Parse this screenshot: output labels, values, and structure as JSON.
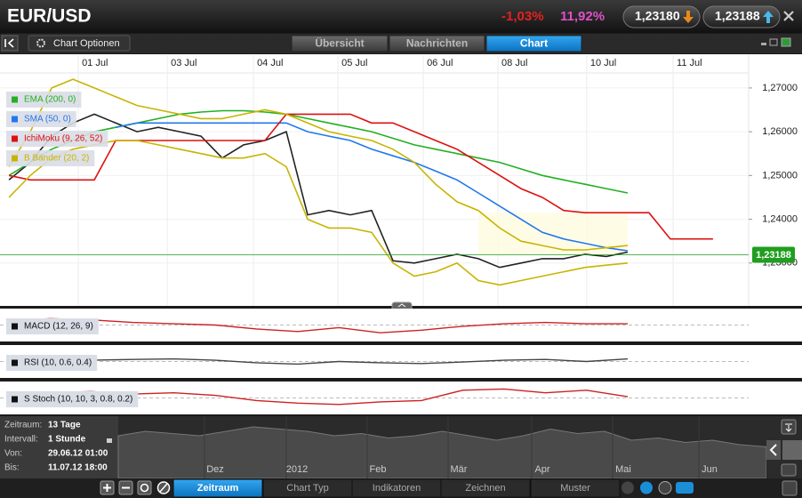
{
  "header": {
    "symbol": "EUR/USD",
    "change": "-1,03%",
    "change2": "11,92%",
    "bid": "1,23180",
    "ask": "1,23188"
  },
  "toolbar": {
    "options": "Chart Optionen",
    "tabs": [
      "Übersicht",
      "Nachrichten",
      "Chart"
    ]
  },
  "chart_data": {
    "type": "line",
    "x": [
      0,
      1,
      2,
      3,
      4,
      5,
      6,
      7,
      8,
      9,
      10,
      11,
      12,
      13,
      14,
      15,
      16,
      17,
      18,
      19,
      20,
      21,
      22,
      23,
      24,
      25,
      26,
      27,
      28,
      29,
      30,
      31,
      32,
      33
    ],
    "xlim": [
      -0.42,
      34.67
    ],
    "xticks": [
      {
        "value": 3.25,
        "label": "01 Jul"
      },
      {
        "value": 7.42,
        "label": "03 Jul"
      },
      {
        "value": 11.46,
        "label": "04 Jul"
      },
      {
        "value": 15.42,
        "label": "05 Jul"
      },
      {
        "value": 19.42,
        "label": "06 Jul"
      },
      {
        "value": 22.92,
        "label": "08 Jul"
      },
      {
        "value": 27.08,
        "label": "10 Jul"
      },
      {
        "value": 31.13,
        "label": "11 Jul"
      }
    ],
    "ylim": [
      1.22,
      1.2775
    ],
    "yticks": [
      {
        "value": 1.27,
        "label": "1,27000"
      },
      {
        "value": 1.26,
        "label": "1,26000"
      },
      {
        "value": 1.25,
        "label": "1,25000"
      },
      {
        "value": 1.24,
        "label": "1,24000"
      },
      {
        "value": 1.23,
        "label": "1,23000"
      }
    ],
    "grid": true,
    "last_price": {
      "value": 1.23188,
      "label": "1,23188",
      "color": "#1f9e1f"
    },
    "series": [
      {
        "color": "#222222",
        "values": [
          1.249,
          1.253,
          1.259,
          1.262,
          1.264,
          1.262,
          1.26,
          1.261,
          1.26,
          1.259,
          1.254,
          1.257,
          1.258,
          1.26,
          1.241,
          1.242,
          1.241,
          1.242,
          1.2305,
          1.23,
          1.231,
          1.232,
          1.231,
          1.229,
          1.23,
          1.231,
          1.231,
          1.232,
          1.2315,
          1.2325,
          null,
          null,
          null,
          null
        ]
      },
      {
        "name": "EMA (200, 0)",
        "color": "#22b022",
        "values": [
          1.25,
          1.253,
          1.256,
          1.258,
          1.26,
          1.261,
          1.262,
          1.263,
          1.264,
          1.2645,
          1.2648,
          1.2648,
          1.2645,
          1.264,
          1.263,
          1.262,
          1.261,
          1.26,
          1.2585,
          1.257,
          1.256,
          1.255,
          1.254,
          1.253,
          1.2515,
          1.25,
          1.249,
          1.248,
          1.247,
          1.246,
          null,
          null,
          null,
          null
        ]
      },
      {
        "name": "SMA (50, 0)",
        "color": "#2277ee",
        "values": [
          null,
          null,
          null,
          null,
          null,
          1.261,
          1.262,
          1.262,
          1.262,
          1.262,
          1.262,
          1.262,
          1.262,
          1.262,
          1.26,
          1.259,
          1.258,
          1.256,
          1.2545,
          1.253,
          1.251,
          1.249,
          1.246,
          1.243,
          1.24,
          1.237,
          1.2355,
          1.2345,
          1.2335,
          1.2328,
          null,
          null,
          null,
          null
        ]
      },
      {
        "name": "IchiMoku (9, 26, 52)",
        "color": "#dd1111",
        "values": [
          1.25,
          1.249,
          1.249,
          1.249,
          1.249,
          1.258,
          1.258,
          1.258,
          1.258,
          1.258,
          1.258,
          1.258,
          1.258,
          1.264,
          1.264,
          1.264,
          1.264,
          1.262,
          1.262,
          1.26,
          1.258,
          1.256,
          1.253,
          1.25,
          1.247,
          1.245,
          1.242,
          1.2415,
          1.2415,
          1.2415,
          1.2415,
          1.2355,
          1.2355,
          1.2355
        ]
      },
      {
        "name": "B Bänder (20, 2)",
        "color": "#c8b400",
        "values": [
          1.252,
          1.26,
          1.27,
          1.272,
          1.27,
          1.268,
          1.266,
          1.265,
          1.264,
          1.263,
          1.263,
          1.264,
          1.265,
          1.264,
          1.262,
          1.26,
          1.259,
          1.258,
          1.256,
          1.253,
          1.248,
          1.244,
          1.242,
          1.238,
          1.235,
          1.234,
          1.233,
          1.233,
          1.2335,
          1.234,
          null,
          null,
          null,
          null
        ]
      },
      {
        "color": "#c8b400",
        "values": [
          1.245,
          1.25,
          1.254,
          1.256,
          1.257,
          1.258,
          1.258,
          1.257,
          1.256,
          1.255,
          1.254,
          1.254,
          1.255,
          1.252,
          1.24,
          1.238,
          1.238,
          1.237,
          1.23,
          1.227,
          1.228,
          1.23,
          1.226,
          1.225,
          1.226,
          1.227,
          1.228,
          1.229,
          1.2295,
          1.23,
          null,
          null,
          null,
          null
        ]
      }
    ]
  },
  "panels": [
    {
      "label": "MACD (12, 26, 9)",
      "color": "#cc2222",
      "ylim": [
        -1,
        1
      ],
      "values": [
        0.3,
        0.5,
        0.4,
        0.2,
        0.1,
        0,
        -0.3,
        -0.5,
        -0.2,
        -0.6,
        -0.4,
        -0.1,
        0.1,
        0.2,
        0.1,
        0.1
      ]
    },
    {
      "label": "RSI (10, 0.6, 0.4)",
      "color": "#444444",
      "ylim": [
        0,
        100
      ],
      "values": [
        60,
        65,
        55,
        58,
        60,
        55,
        45,
        40,
        50,
        45,
        42,
        48,
        55,
        58,
        50,
        60
      ]
    },
    {
      "label": "S Stoch (10, 10, 3, 0.8, 0.2)",
      "color": "#cc2222",
      "ylim": [
        0,
        100
      ],
      "values": [
        60,
        70,
        75,
        65,
        70,
        60,
        40,
        30,
        25,
        35,
        40,
        80,
        85,
        70,
        80,
        55
      ]
    }
  ],
  "navigator": {
    "info": [
      {
        "label": "Zeitraum:",
        "value": "13 Tage"
      },
      {
        "label": "Intervall:",
        "value": "1 Stunde"
      },
      {
        "label": "Von:",
        "value": "29.06.12 01:00"
      },
      {
        "label": "Bis:",
        "value": "11.07.12 18:00"
      }
    ],
    "labels": [
      "Dez",
      "2012",
      "Feb",
      "Mär",
      "Apr",
      "Mai",
      "Jun"
    ],
    "ylim": [
      0,
      10
    ],
    "values": [
      6,
      7,
      6.5,
      6,
      7,
      8,
      7.5,
      7,
      6,
      6.5,
      5.5,
      6,
      7,
      6,
      5,
      6,
      7.5,
      6.5,
      7,
      5,
      5.5,
      4.5,
      5,
      4,
      3.5
    ]
  },
  "footer": {
    "tabs": [
      "Zeitraum",
      "Chart Typ",
      "Indikatoren",
      "Zeichnen",
      "Muster"
    ]
  }
}
